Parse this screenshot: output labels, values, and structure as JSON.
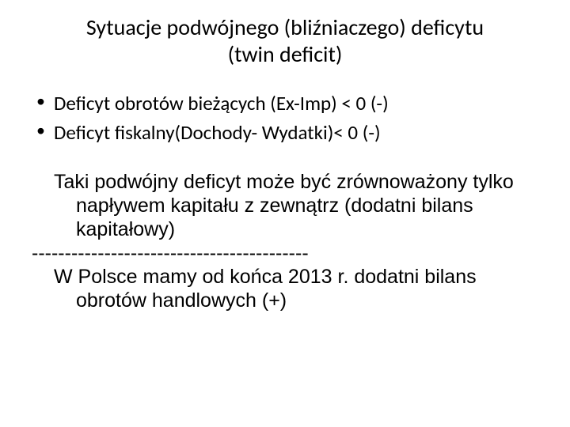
{
  "title_line1": "Sytuacje podwójnego (bliźniaczego) deficytu",
  "title_line2": "(twin deficit)",
  "bullets": {
    "b1": "Deficyt obrotów bieżących (Ex-Imp)   < 0   (-)",
    "b2": "Deficyt fiskalny(Dochody- Wydatki)< 0  (-)"
  },
  "paragraph1": "Taki podwójny deficyt może  być zrównoważony tylko napływem kapitału z zewnątrz (dodatni bilans kapitałowy)",
  "divider": "------------------------------------------",
  "paragraph2": "W Polsce mamy od końca 2013 r. dodatni bilans obrotów handlowych (+)"
}
